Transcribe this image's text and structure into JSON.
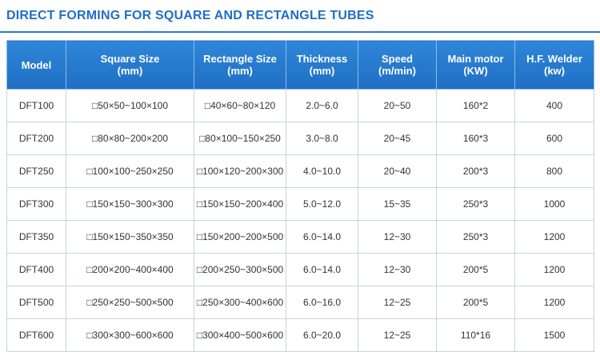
{
  "title": "DIRECT FORMING FOR SQUARE AND RECTANGLE TUBES",
  "table": {
    "columns": [
      [
        "Model"
      ],
      [
        "Square Size",
        "(mm)"
      ],
      [
        "Rectangle Size",
        "(mm)"
      ],
      [
        "Thickness",
        "(mm)"
      ],
      [
        "Speed",
        "(m/min)"
      ],
      [
        "Main motor",
        "(KW)"
      ],
      [
        "H.F. Welder",
        "(kw)"
      ]
    ],
    "rows": [
      [
        "DFT100",
        "□50×50~100×100",
        "□40×60~80×120",
        "2.0~6.0",
        "20~50",
        "160*2",
        "400"
      ],
      [
        "DFT200",
        "□80×80~200×200",
        "□80×100~150×250",
        "3.0~8.0",
        "20~45",
        "160*3",
        "600"
      ],
      [
        "DFT250",
        "□100×100~250×250",
        "□100×120~200×300",
        "4.0~10.0",
        "20~40",
        "200*3",
        "800"
      ],
      [
        "DFT300",
        "□150×150~300×300",
        "□150×150~200×400",
        "5.0~12.0",
        "15~35",
        "250*3",
        "1000"
      ],
      [
        "DFT350",
        "□150×150~350×350",
        "□150×200~200×500",
        "6.0~14.0",
        "12~30",
        "250*3",
        "1200"
      ],
      [
        "DFT400",
        "□200×200~400×400",
        "□200×250~300×500",
        "6.0~14.0",
        "12~30",
        "200*5",
        "1200"
      ],
      [
        "DFT500",
        "□250×250~500×500",
        "□250×300~400×600",
        "6.0~16.0",
        "12~25",
        "200*5",
        "1200"
      ],
      [
        "DFT600",
        "□300×300~600×600",
        "□300×400~500×600",
        "6.0~20.0",
        "12~25",
        "110*16",
        "1500"
      ]
    ]
  }
}
